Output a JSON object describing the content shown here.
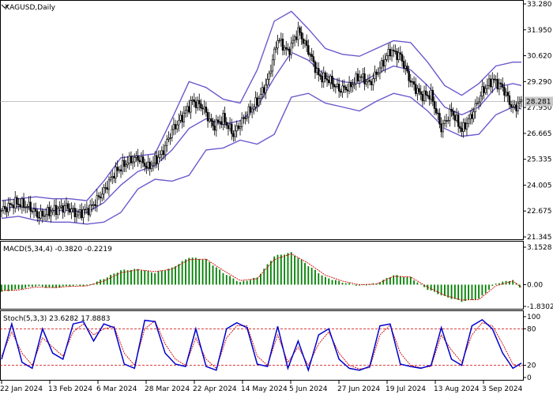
{
  "colors": {
    "background": "#ffffff",
    "frame": "#000000",
    "candle": "#000000",
    "bollinger": "#6a5acd",
    "macd_hist": "#008000",
    "macd_signal": "#cc0000",
    "stoch_main": "#0000cd",
    "stoch_signal": "#cc0000",
    "stoch_levels": "#cc0000",
    "price_badge_bg": "#c8c8c8"
  },
  "chart_data": [
    {
      "type": "candlestick",
      "title": "XAGUSD,Daily",
      "symbol": "XAGUSD",
      "timeframe": "Daily",
      "current_price": "28.281",
      "ylim": [
        21.345,
        33.28
      ],
      "y_ticks": [
        "33.280",
        "31.950",
        "30.620",
        "29.290",
        "27.950",
        "26.665",
        "25.335",
        "24.005",
        "22.675",
        "21.345"
      ],
      "x_labels": [
        "22 Jan 2024",
        "13 Feb 2024",
        "6 Mar 2024",
        "28 Mar 2024",
        "22 Apr 2024",
        "14 May 2024",
        "5 Jun 2024",
        "27 Jun 2024",
        "19 Jul 2024",
        "13 Aug 2024",
        "3 Sep 2024"
      ],
      "close_path": [
        [
          0,
          22.7
        ],
        [
          8,
          23.1
        ],
        [
          16,
          22.9
        ],
        [
          22,
          22.4
        ],
        [
          30,
          22.7
        ],
        [
          38,
          22.9
        ],
        [
          44,
          22.5
        ],
        [
          52,
          22.8
        ],
        [
          60,
          23.7
        ],
        [
          66,
          24.6
        ],
        [
          74,
          25.2
        ],
        [
          80,
          25.4
        ],
        [
          86,
          24.9
        ],
        [
          94,
          25.6
        ],
        [
          100,
          26.8
        ],
        [
          106,
          27.5
        ],
        [
          112,
          28.3
        ],
        [
          118,
          28.0
        ],
        [
          124,
          27.0
        ],
        [
          130,
          27.4
        ],
        [
          136,
          26.6
        ],
        [
          142,
          27.4
        ],
        [
          150,
          28.3
        ],
        [
          156,
          29.3
        ],
        [
          162,
          31.5
        ],
        [
          168,
          30.8
        ],
        [
          174,
          31.9
        ],
        [
          180,
          30.9
        ],
        [
          186,
          29.6
        ],
        [
          192,
          29.4
        ],
        [
          198,
          28.9
        ],
        [
          204,
          29.0
        ],
        [
          210,
          29.6
        ],
        [
          216,
          29.2
        ],
        [
          222,
          30.0
        ],
        [
          228,
          30.9
        ],
        [
          234,
          30.6
        ],
        [
          240,
          29.3
        ],
        [
          246,
          28.6
        ],
        [
          252,
          28.6
        ],
        [
          258,
          26.9
        ],
        [
          264,
          27.8
        ],
        [
          270,
          26.8
        ],
        [
          276,
          27.6
        ],
        [
          282,
          28.8
        ],
        [
          288,
          29.4
        ],
        [
          294,
          29.0
        ],
        [
          300,
          27.9
        ],
        [
          305,
          28.281
        ]
      ],
      "bollinger": {
        "upper": [
          [
            0,
            23.2
          ],
          [
            10,
            23.3
          ],
          [
            20,
            23.4
          ],
          [
            30,
            23.3
          ],
          [
            40,
            23.3
          ],
          [
            50,
            23.2
          ],
          [
            60,
            24.2
          ],
          [
            70,
            25.4
          ],
          [
            80,
            25.5
          ],
          [
            90,
            25.6
          ],
          [
            100,
            27.4
          ],
          [
            110,
            29.3
          ],
          [
            120,
            29.0
          ],
          [
            130,
            28.4
          ],
          [
            140,
            28.2
          ],
          [
            150,
            29.9
          ],
          [
            160,
            32.4
          ],
          [
            170,
            32.9
          ],
          [
            180,
            32.0
          ],
          [
            190,
            31.0
          ],
          [
            200,
            30.7
          ],
          [
            210,
            30.6
          ],
          [
            220,
            31.0
          ],
          [
            230,
            31.4
          ],
          [
            240,
            31.3
          ],
          [
            250,
            30.3
          ],
          [
            260,
            29.1
          ],
          [
            270,
            28.6
          ],
          [
            280,
            29.2
          ],
          [
            290,
            30.1
          ],
          [
            300,
            30.3
          ],
          [
            305,
            30.3
          ]
        ],
        "middle": [
          [
            0,
            22.8
          ],
          [
            10,
            22.9
          ],
          [
            20,
            22.8
          ],
          [
            30,
            22.7
          ],
          [
            40,
            22.7
          ],
          [
            50,
            22.6
          ],
          [
            60,
            23.1
          ],
          [
            70,
            24.0
          ],
          [
            80,
            24.7
          ],
          [
            90,
            25.0
          ],
          [
            100,
            25.8
          ],
          [
            110,
            26.9
          ],
          [
            120,
            27.4
          ],
          [
            130,
            27.1
          ],
          [
            140,
            27.3
          ],
          [
            150,
            28.0
          ],
          [
            160,
            29.5
          ],
          [
            170,
            30.8
          ],
          [
            180,
            30.4
          ],
          [
            190,
            29.6
          ],
          [
            200,
            29.3
          ],
          [
            210,
            29.2
          ],
          [
            220,
            29.7
          ],
          [
            230,
            30.1
          ],
          [
            240,
            29.9
          ],
          [
            250,
            29.1
          ],
          [
            260,
            28.0
          ],
          [
            270,
            27.6
          ],
          [
            280,
            28.0
          ],
          [
            290,
            29.0
          ],
          [
            300,
            29.2
          ],
          [
            305,
            29.1
          ]
        ],
        "lower": [
          [
            0,
            22.3
          ],
          [
            10,
            22.4
          ],
          [
            20,
            22.2
          ],
          [
            30,
            22.1
          ],
          [
            40,
            22.1
          ],
          [
            50,
            22.0
          ],
          [
            60,
            22.1
          ],
          [
            70,
            22.6
          ],
          [
            80,
            23.8
          ],
          [
            90,
            24.3
          ],
          [
            100,
            24.2
          ],
          [
            110,
            24.5
          ],
          [
            120,
            25.8
          ],
          [
            130,
            25.9
          ],
          [
            140,
            26.3
          ],
          [
            150,
            26.1
          ],
          [
            160,
            26.6
          ],
          [
            170,
            28.5
          ],
          [
            180,
            28.7
          ],
          [
            190,
            28.2
          ],
          [
            200,
            28.0
          ],
          [
            210,
            27.8
          ],
          [
            220,
            28.3
          ],
          [
            230,
            28.7
          ],
          [
            240,
            28.5
          ],
          [
            250,
            27.8
          ],
          [
            260,
            26.9
          ],
          [
            270,
            26.5
          ],
          [
            280,
            26.6
          ],
          [
            290,
            27.6
          ],
          [
            300,
            28.0
          ],
          [
            305,
            27.9
          ]
        ]
      }
    },
    {
      "type": "histogram",
      "title": "MACD(5,34,4) -0.3820 -0.2219",
      "ylim": [
        -1.8302,
        3.1528
      ],
      "y_ticks": [
        "3.1528",
        "0.00",
        "-1.8302"
      ],
      "histogram": [
        [
          0,
          -0.6
        ],
        [
          10,
          -0.4
        ],
        [
          20,
          -0.1
        ],
        [
          30,
          -0.3
        ],
        [
          40,
          -0.1
        ],
        [
          50,
          -0.1
        ],
        [
          60,
          0.5
        ],
        [
          70,
          1.2
        ],
        [
          80,
          1.3
        ],
        [
          90,
          1.0
        ],
        [
          100,
          1.4
        ],
        [
          110,
          2.3
        ],
        [
          120,
          2.1
        ],
        [
          130,
          1.0
        ],
        [
          140,
          0.2
        ],
        [
          150,
          0.6
        ],
        [
          160,
          2.4
        ],
        [
          170,
          2.7
        ],
        [
          180,
          1.6
        ],
        [
          190,
          0.6
        ],
        [
          200,
          0.2
        ],
        [
          210,
          -0.1
        ],
        [
          220,
          0.1
        ],
        [
          230,
          0.8
        ],
        [
          240,
          0.6
        ],
        [
          250,
          -0.4
        ],
        [
          260,
          -1.0
        ],
        [
          270,
          -1.4
        ],
        [
          280,
          -1.2
        ],
        [
          290,
          0.1
        ],
        [
          300,
          0.4
        ],
        [
          305,
          -0.382
        ]
      ],
      "signal": [
        [
          0,
          -0.5
        ],
        [
          10,
          -0.45
        ],
        [
          20,
          -0.2
        ],
        [
          30,
          -0.25
        ],
        [
          40,
          -0.15
        ],
        [
          50,
          -0.1
        ],
        [
          60,
          0.3
        ],
        [
          70,
          1.0
        ],
        [
          80,
          1.25
        ],
        [
          90,
          1.1
        ],
        [
          100,
          1.3
        ],
        [
          110,
          2.1
        ],
        [
          120,
          2.15
        ],
        [
          130,
          1.2
        ],
        [
          140,
          0.35
        ],
        [
          150,
          0.5
        ],
        [
          160,
          2.1
        ],
        [
          170,
          2.6
        ],
        [
          180,
          1.8
        ],
        [
          190,
          0.8
        ],
        [
          200,
          0.3
        ],
        [
          210,
          0.0
        ],
        [
          220,
          0.05
        ],
        [
          230,
          0.7
        ],
        [
          240,
          0.65
        ],
        [
          250,
          -0.2
        ],
        [
          260,
          -0.9
        ],
        [
          270,
          -1.3
        ],
        [
          280,
          -1.25
        ],
        [
          290,
          -0.1
        ],
        [
          300,
          0.3
        ],
        [
          305,
          -0.2219
        ]
      ]
    },
    {
      "type": "line",
      "title": "Stoch(5,3,3) 23.6282 17.8883",
      "ylim": [
        0,
        100
      ],
      "y_ticks": [
        "100",
        "80",
        "20",
        "0"
      ],
      "levels": [
        80,
        20
      ],
      "series": [
        {
          "values": [
            [
              0,
              30
            ],
            [
              6,
              88
            ],
            [
              12,
              25
            ],
            [
              18,
              15
            ],
            [
              24,
              80
            ],
            [
              30,
              40
            ],
            [
              36,
              30
            ],
            [
              42,
              88
            ],
            [
              48,
              92
            ],
            [
              54,
              60
            ],
            [
              60,
              88
            ],
            [
              66,
              82
            ],
            [
              72,
              22
            ],
            [
              78,
              15
            ],
            [
              84,
              94
            ],
            [
              90,
              92
            ],
            [
              96,
              40
            ],
            [
              102,
              22
            ],
            [
              108,
              18
            ],
            [
              114,
              80
            ],
            [
              120,
              18
            ],
            [
              126,
              12
            ],
            [
              132,
              80
            ],
            [
              138,
              90
            ],
            [
              144,
              82
            ],
            [
              150,
              22
            ],
            [
              156,
              18
            ],
            [
              162,
              84
            ],
            [
              168,
              15
            ],
            [
              174,
              60
            ],
            [
              180,
              12
            ],
            [
              186,
              70
            ],
            [
              192,
              80
            ],
            [
              198,
              30
            ],
            [
              204,
              15
            ],
            [
              210,
              12
            ],
            [
              216,
              18
            ],
            [
              222,
              85
            ],
            [
              228,
              88
            ],
            [
              234,
              22
            ],
            [
              240,
              18
            ],
            [
              246,
              15
            ],
            [
              252,
              20
            ],
            [
              258,
              82
            ],
            [
              264,
              30
            ],
            [
              270,
              20
            ],
            [
              276,
              85
            ],
            [
              282,
              95
            ],
            [
              288,
              80
            ],
            [
              294,
              40
            ],
            [
              300,
              15
            ],
            [
              305,
              23.6282
            ]
          ]
        },
        {
          "values": [
            [
              0,
              35
            ],
            [
              6,
              75
            ],
            [
              12,
              40
            ],
            [
              18,
              20
            ],
            [
              24,
              65
            ],
            [
              30,
              50
            ],
            [
              36,
              35
            ],
            [
              42,
              75
            ],
            [
              48,
              88
            ],
            [
              54,
              70
            ],
            [
              60,
              80
            ],
            [
              66,
              84
            ],
            [
              72,
              40
            ],
            [
              78,
              20
            ],
            [
              84,
              80
            ],
            [
              90,
              93
            ],
            [
              96,
              55
            ],
            [
              102,
              30
            ],
            [
              108,
              20
            ],
            [
              114,
              65
            ],
            [
              120,
              30
            ],
            [
              126,
              15
            ],
            [
              132,
              65
            ],
            [
              138,
              85
            ],
            [
              144,
              85
            ],
            [
              150,
              35
            ],
            [
              156,
              20
            ],
            [
              162,
              70
            ],
            [
              168,
              25
            ],
            [
              174,
              50
            ],
            [
              180,
              20
            ],
            [
              186,
              55
            ],
            [
              192,
              75
            ],
            [
              198,
              40
            ],
            [
              204,
              20
            ],
            [
              210,
              14
            ],
            [
              216,
              16
            ],
            [
              222,
              70
            ],
            [
              228,
              86
            ],
            [
              234,
              40
            ],
            [
              240,
              20
            ],
            [
              246,
              16
            ],
            [
              252,
              18
            ],
            [
              258,
              70
            ],
            [
              264,
              45
            ],
            [
              270,
              25
            ],
            [
              276,
              70
            ],
            [
              282,
              90
            ],
            [
              288,
              85
            ],
            [
              294,
              55
            ],
            [
              300,
              22
            ],
            [
              305,
              17.8883
            ]
          ]
        }
      ]
    }
  ]
}
